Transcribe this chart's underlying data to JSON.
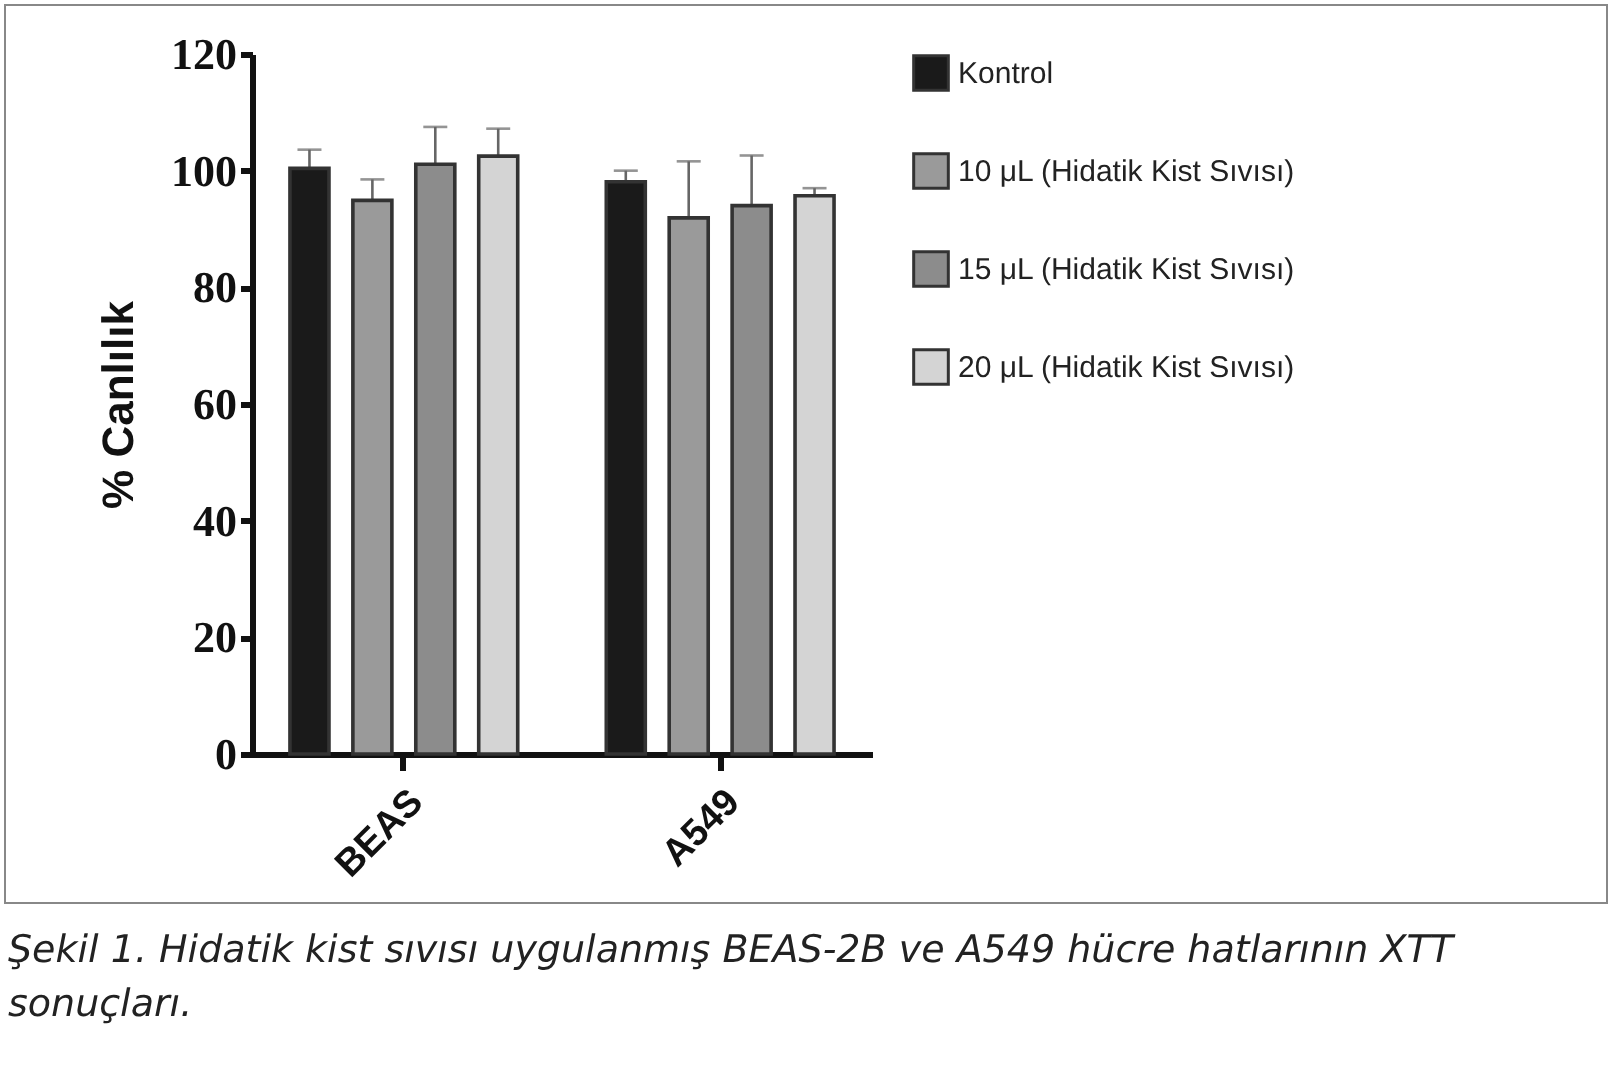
{
  "chart_data": {
    "type": "bar",
    "ylabel": "% Canlılık",
    "categories": [
      "BEAS",
      "A549"
    ],
    "series": [
      {
        "name": "Kontrol",
        "color": "#1a1a1a",
        "values": [
          100.4,
          98.1
        ],
        "errors": [
          3.2,
          1.9
        ]
      },
      {
        "name": "10 μL (Hidatik Kist Sıvısı)",
        "color": "#9a9a9a",
        "values": [
          94.9,
          91.9
        ],
        "errors": [
          3.6,
          9.7
        ]
      },
      {
        "name": "15 μL (Hidatik Kist Sıvısı)",
        "color": "#8c8c8c",
        "values": [
          101.1,
          94.0
        ],
        "errors": [
          6.4,
          8.6
        ]
      },
      {
        "name": "20 μL (Hidatik Kist Sıvısı)",
        "color": "#d4d4d4",
        "values": [
          102.5,
          95.7
        ],
        "errors": [
          4.7,
          1.3
        ]
      }
    ],
    "ylim": [
      0,
      120
    ],
    "yticks": [
      0,
      20,
      40,
      60,
      80,
      100,
      120
    ],
    "grid": false,
    "legend": "right",
    "annotations": [
      "Şekil 1. Hidatik kist sıvısı uygulanmış BEAS-2B ve A549 hücre hatlarının XTT sonuçları."
    ]
  }
}
